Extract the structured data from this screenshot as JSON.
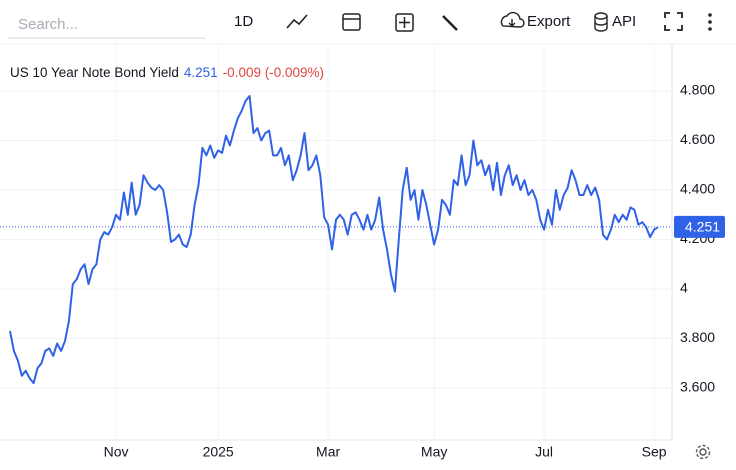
{
  "toolbar": {
    "search_placeholder": "Search...",
    "interval": "1D",
    "export": "Export",
    "api": "API"
  },
  "chart_data": {
    "type": "line",
    "title": "US 10 Year Note Bond Yield",
    "current": 4.251,
    "change_label": "-0.009 (-0.009%)",
    "categories": [
      null,
      null,
      null,
      null,
      null,
      null,
      null,
      null,
      null,
      null,
      null,
      null,
      null,
      null,
      null,
      null,
      null,
      null,
      null,
      null,
      null,
      null,
      null,
      null,
      null,
      null,
      null,
      "Nov",
      null,
      null,
      null,
      null,
      null,
      null,
      null,
      null,
      null,
      null,
      null,
      null,
      null,
      null,
      null,
      null,
      null,
      null,
      null,
      null,
      null,
      null,
      null,
      null,
      null,
      "2025",
      null,
      null,
      null,
      null,
      null,
      null,
      null,
      null,
      null,
      null,
      null,
      null,
      null,
      null,
      null,
      null,
      null,
      null,
      null,
      null,
      null,
      null,
      null,
      null,
      null,
      null,
      null,
      "Mar",
      null,
      null,
      null,
      null,
      null,
      null,
      null,
      null,
      null,
      null,
      null,
      null,
      null,
      null,
      null,
      null,
      null,
      null,
      null,
      null,
      null,
      null,
      null,
      null,
      null,
      null,
      "May",
      null,
      null,
      null,
      null,
      null,
      null,
      null,
      null,
      null,
      null,
      null,
      null,
      null,
      null,
      null,
      null,
      null,
      null,
      null,
      null,
      null,
      null,
      null,
      null,
      null,
      null,
      null,
      "Jul",
      null,
      null,
      null,
      null,
      null,
      null,
      null,
      null,
      null,
      null,
      null,
      null,
      null,
      null,
      null,
      null,
      null,
      null,
      null,
      null,
      null,
      null,
      null,
      null,
      null,
      null,
      null,
      "Sep",
      null
    ],
    "values": [
      3.83,
      3.75,
      3.71,
      3.65,
      3.67,
      3.64,
      3.62,
      3.68,
      3.7,
      3.75,
      3.76,
      3.73,
      3.78,
      3.75,
      3.79,
      3.87,
      4.02,
      4.04,
      4.08,
      4.1,
      4.02,
      4.08,
      4.1,
      4.2,
      4.23,
      4.22,
      4.25,
      4.3,
      4.28,
      4.39,
      4.3,
      4.43,
      4.3,
      4.34,
      4.46,
      4.43,
      4.41,
      4.4,
      4.42,
      4.4,
      4.31,
      4.19,
      4.2,
      4.22,
      4.18,
      4.17,
      4.22,
      4.34,
      4.42,
      4.57,
      4.54,
      4.58,
      4.53,
      4.56,
      4.55,
      4.62,
      4.58,
      4.64,
      4.69,
      4.72,
      4.76,
      4.78,
      4.63,
      4.65,
      4.6,
      4.63,
      4.64,
      4.54,
      4.54,
      4.57,
      4.5,
      4.54,
      4.44,
      4.48,
      4.54,
      4.63,
      4.48,
      4.5,
      4.54,
      4.46,
      4.29,
      4.26,
      4.16,
      4.28,
      4.3,
      4.28,
      4.22,
      4.3,
      4.31,
      4.28,
      4.24,
      4.3,
      4.24,
      4.28,
      4.37,
      4.24,
      4.16,
      4.06,
      3.99,
      4.2,
      4.4,
      4.49,
      4.36,
      4.4,
      4.28,
      4.4,
      4.34,
      4.26,
      4.18,
      4.24,
      4.36,
      4.34,
      4.3,
      4.44,
      4.42,
      4.54,
      4.42,
      4.46,
      4.6,
      4.5,
      4.52,
      4.46,
      4.5,
      4.4,
      4.51,
      4.38,
      4.46,
      4.5,
      4.42,
      4.46,
      4.4,
      4.44,
      4.38,
      4.4,
      4.36,
      4.28,
      4.24,
      4.32,
      4.26,
      4.4,
      4.32,
      4.38,
      4.41,
      4.48,
      4.44,
      4.38,
      4.38,
      4.42,
      4.38,
      4.41,
      4.36,
      4.22,
      4.2,
      4.24,
      4.3,
      4.27,
      4.3,
      4.28,
      4.33,
      4.32,
      4.26,
      4.27,
      4.25,
      4.21,
      4.24,
      4.25
    ],
    "color": "#2f62e6",
    "ylim": [
      3.39,
      4.99
    ],
    "yticks": [
      {
        "value": 3.6,
        "label": "3.600"
      },
      {
        "value": 3.8,
        "label": "3.800"
      },
      4,
      {
        "value": 4.2,
        "label": "4.200"
      },
      {
        "value": 4.4,
        "label": "4.400"
      },
      {
        "value": 4.6,
        "label": "4.600"
      },
      {
        "value": 4.8,
        "label": "4.800"
      }
    ],
    "grid": true
  }
}
